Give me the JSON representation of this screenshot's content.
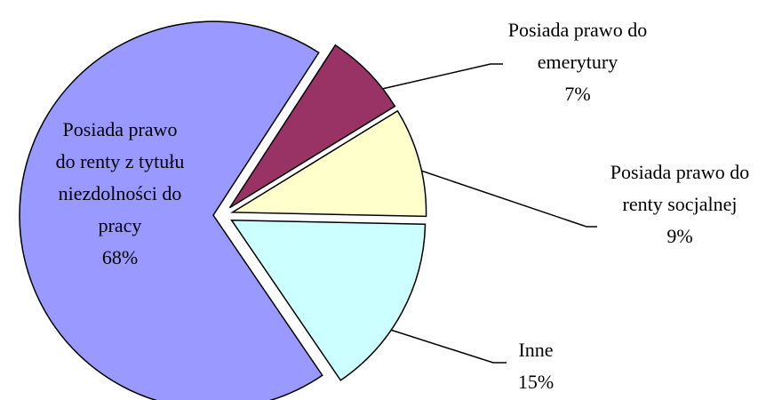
{
  "chart_data": {
    "type": "pie",
    "categories": [
      "Posiada prawo do emerytury",
      "Posiada prawo do renty socjalnej",
      "Inne",
      "Posiada prawo do renty z tytułu niezdolności do pracy"
    ],
    "values": [
      7,
      9,
      15,
      68
    ],
    "value_labels": [
      "7%",
      "9%",
      "15%",
      "68%"
    ],
    "colors": [
      "#993366",
      "#ffffcc",
      "#ccffff",
      "#9999ff"
    ]
  }
}
